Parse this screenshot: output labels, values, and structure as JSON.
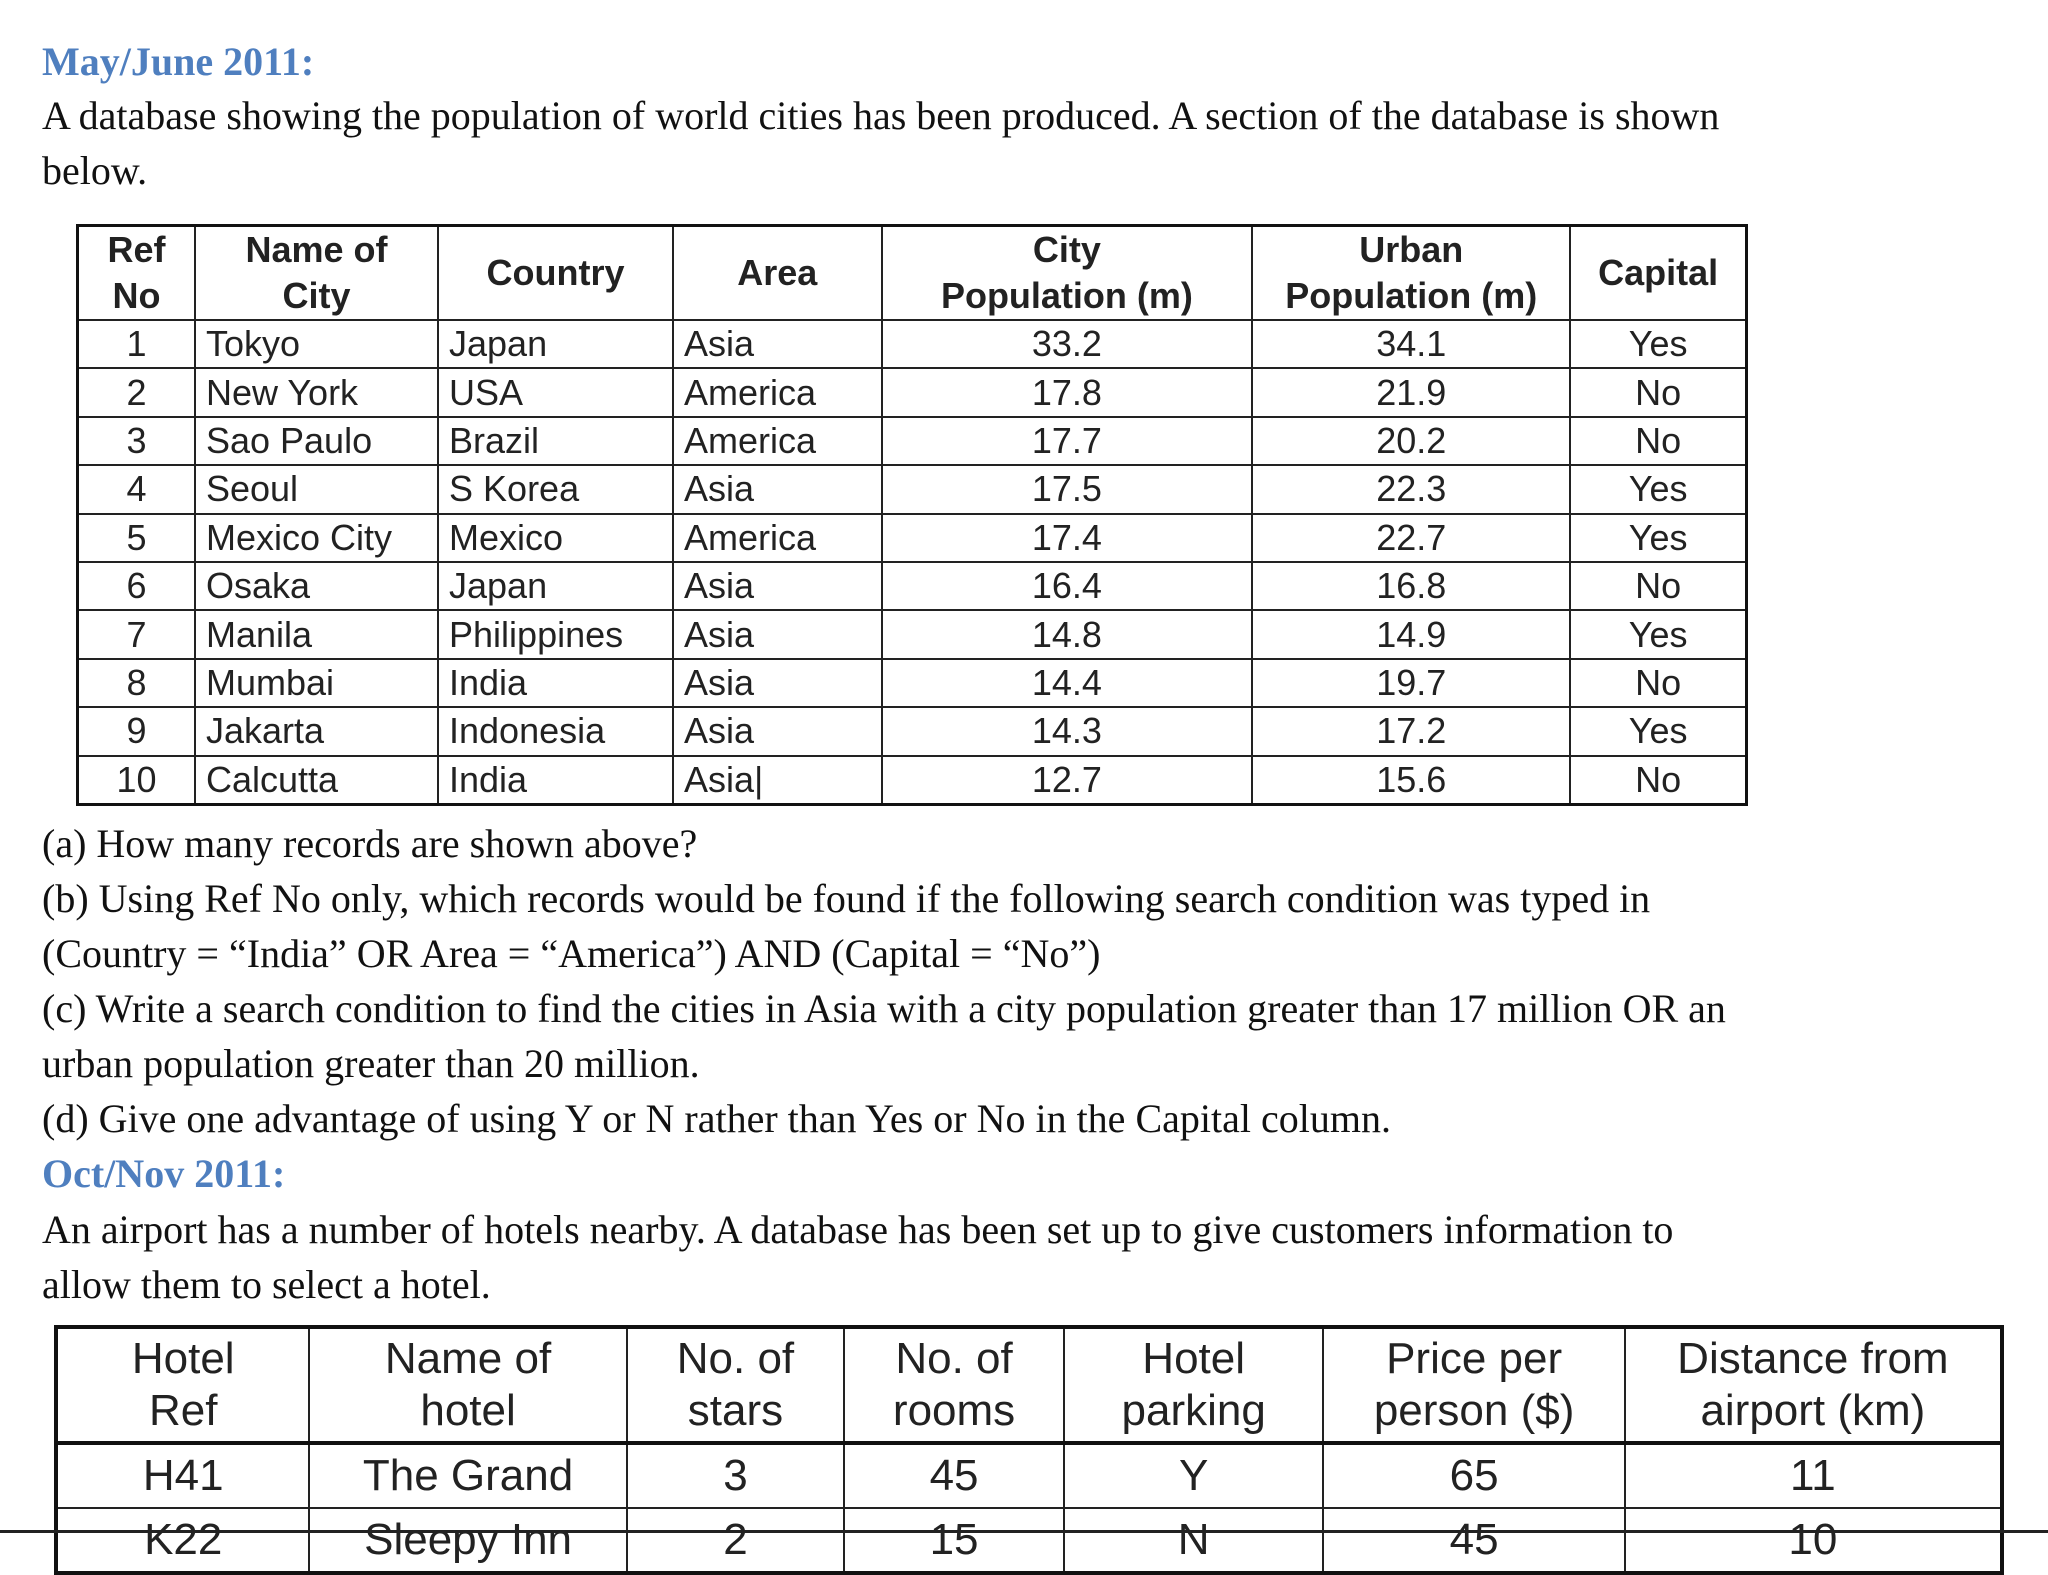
{
  "section1": {
    "heading": "May/June 2011:",
    "intro_line1": "A database showing the population of world cities has been produced. A section of the database is shown",
    "intro_line2": "below.",
    "table": {
      "headers": [
        [
          "Ref",
          "No"
        ],
        [
          "Name of",
          "City"
        ],
        [
          "Country"
        ],
        [
          "Area"
        ],
        [
          "City",
          "Population (m)"
        ],
        [
          "Urban",
          "Population (m)"
        ],
        [
          "Capital"
        ]
      ],
      "rows": [
        [
          "1",
          "Tokyo",
          "Japan",
          "Asia",
          "33.2",
          "34.1",
          "Yes"
        ],
        [
          "2",
          "New York",
          "USA",
          "America",
          "17.8",
          "21.9",
          "No"
        ],
        [
          "3",
          "Sao Paulo",
          "Brazil",
          "America",
          "17.7",
          "20.2",
          "No"
        ],
        [
          "4",
          "Seoul",
          "S Korea",
          "Asia",
          "17.5",
          "22.3",
          "Yes"
        ],
        [
          "5",
          "Mexico City",
          "Mexico",
          "America",
          "17.4",
          "22.7",
          "Yes"
        ],
        [
          "6",
          "Osaka",
          "Japan",
          "Asia",
          "16.4",
          "16.8",
          "No"
        ],
        [
          "7",
          "Manila",
          "Philippines",
          "Asia",
          "14.8",
          "14.9",
          "Yes"
        ],
        [
          "8",
          "Mumbai",
          "India",
          "Asia",
          "14.4",
          "19.7",
          "No"
        ],
        [
          "9",
          "Jakarta",
          "Indonesia",
          "Asia",
          "14.3",
          "17.2",
          "Yes"
        ],
        [
          "10",
          "Calcutta",
          "India",
          "Asia|",
          "12.7",
          "15.6",
          "No"
        ]
      ]
    },
    "questions": [
      "(a) How many records are shown above?",
      "(b) Using Ref No only, which records would be found if the following search condition was typed in",
      "(Country = “India” OR Area = “America”) AND (Capital = “No”)",
      "(c) Write a search condition to find the cities in Asia with a city population greater than 17 million OR an",
      "urban population greater than 20 million.",
      "(d) Give one advantage of using Y or N rather than Yes or No in the Capital column."
    ]
  },
  "section2": {
    "heading": "Oct/Nov 2011:",
    "intro_line1": "An airport has a number of hotels nearby. A database has been set up to give customers information to",
    "intro_line2": "allow them to select a hotel.",
    "table": {
      "headers": [
        [
          "Hotel",
          "Ref"
        ],
        [
          "Name of",
          "hotel"
        ],
        [
          "No. of",
          "stars"
        ],
        [
          "No. of",
          "rooms"
        ],
        [
          "Hotel",
          "parking"
        ],
        [
          "Price per",
          "person ($)"
        ],
        [
          "Distance from",
          "airport (km)"
        ]
      ],
      "rows": [
        [
          "H41",
          "The Grand",
          "3",
          "45",
          "Y",
          "65",
          "11"
        ],
        [
          "K22",
          "Sleepy Inn",
          "2",
          "15",
          "N",
          "45",
          "10"
        ]
      ]
    }
  }
}
